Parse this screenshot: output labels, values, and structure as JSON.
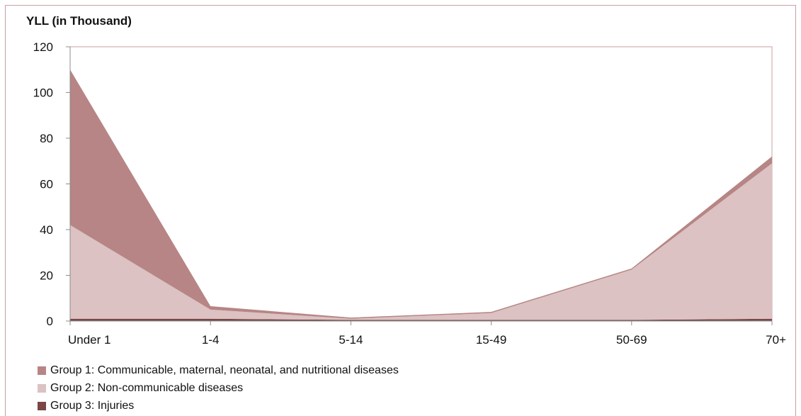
{
  "chart_data": {
    "type": "area",
    "ylabel": "YLL (in Thousand)",
    "xlabel": "",
    "categories": [
      "Under 1",
      "1-4",
      "5-14",
      "15-49",
      "50-69",
      "70+"
    ],
    "ylim": [
      0,
      120
    ],
    "yticks": [
      0,
      20,
      40,
      60,
      80,
      100,
      120
    ],
    "stacked": true,
    "grid": false,
    "legend_position": "bottom-left",
    "series": [
      {
        "name": "Group 3: Injuries",
        "color": "#7a4646",
        "values": [
          1,
          1,
          0.5,
          0.5,
          0.5,
          1
        ]
      },
      {
        "name": "Group 2: Non-communicable diseases",
        "color": "#dcc2c2",
        "values": [
          41,
          4,
          0.5,
          3,
          22,
          68
        ]
      },
      {
        "name": "Group 1: Communicable, maternal, neonatal, and nutritional diseases",
        "color": "#b78585",
        "values": [
          68,
          1.5,
          0.5,
          0.5,
          0.5,
          3
        ]
      }
    ],
    "legend_order": [
      2,
      1,
      0
    ]
  }
}
